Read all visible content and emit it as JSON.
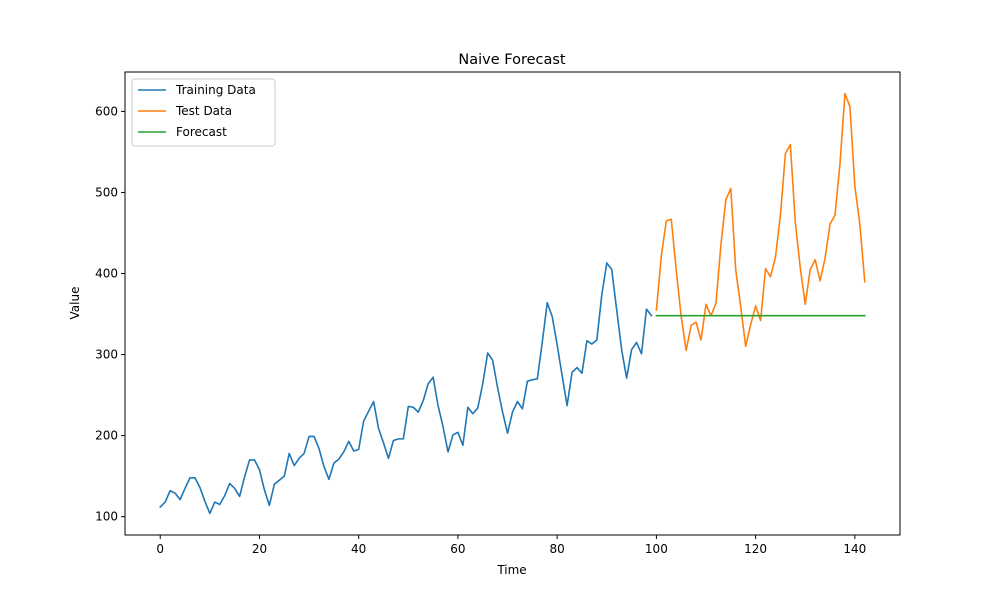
{
  "chart_data": {
    "type": "line",
    "title": "Naive Forecast",
    "xlabel": "Time",
    "ylabel": "Value",
    "xlim": [
      -7.1,
      149.1
    ],
    "ylim": [
      77.4,
      648.6
    ],
    "xticks": [
      0,
      20,
      40,
      60,
      80,
      100,
      120,
      140
    ],
    "yticks": [
      100,
      200,
      300,
      400,
      500,
      600
    ],
    "grid": false,
    "legend_position": "top-left",
    "series": [
      {
        "name": "Training Data",
        "color": "#1f77b4",
        "x_start": 0,
        "values": [
          112,
          118,
          132,
          129,
          121,
          135,
          148,
          148,
          136,
          119,
          104,
          118,
          115,
          126,
          141,
          135,
          125,
          149,
          170,
          170,
          158,
          133,
          114,
          140,
          145,
          150,
          178,
          163,
          172,
          178,
          199,
          199,
          184,
          162,
          146,
          166,
          171,
          180,
          193,
          181,
          183,
          218,
          230,
          242,
          209,
          191,
          172,
          194,
          196,
          196,
          236,
          235,
          229,
          243,
          264,
          272,
          237,
          211,
          180,
          201,
          204,
          188,
          235,
          227,
          234,
          264,
          302,
          293,
          259,
          229,
          203,
          229,
          242,
          233,
          267,
          269,
          270,
          315,
          364,
          347,
          312,
          274,
          237,
          278,
          284,
          277,
          317,
          313,
          318,
          374,
          413,
          405,
          355,
          306,
          271,
          306,
          315,
          301,
          356,
          348
        ]
      },
      {
        "name": "Test Data",
        "color": "#ff7f0e",
        "x_start": 100,
        "values": [
          355,
          422,
          465,
          467,
          404,
          347,
          305,
          336,
          340,
          318,
          362,
          348,
          363,
          435,
          491,
          505,
          404,
          359,
          310,
          337,
          360,
          342,
          406,
          396,
          420,
          472,
          548,
          559,
          463,
          407,
          362,
          405,
          417,
          391,
          419,
          461,
          472,
          535,
          622,
          606,
          508,
          461,
          390
        ]
      },
      {
        "name": "Forecast",
        "color": "#2ca02c",
        "x_start": 100,
        "values": [
          348,
          348,
          348,
          348,
          348,
          348,
          348,
          348,
          348,
          348,
          348,
          348,
          348,
          348,
          348,
          348,
          348,
          348,
          348,
          348,
          348,
          348,
          348,
          348,
          348,
          348,
          348,
          348,
          348,
          348,
          348,
          348,
          348,
          348,
          348,
          348,
          348,
          348,
          348,
          348,
          348,
          348,
          348
        ]
      }
    ]
  }
}
